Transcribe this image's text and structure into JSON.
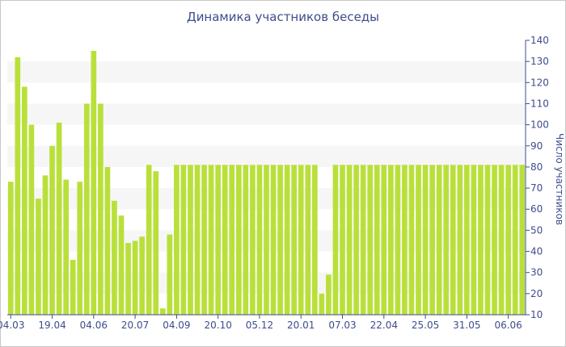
{
  "chart_data": {
    "type": "bar",
    "title": "Динамика участников беседы",
    "ylabel": "Число участников",
    "ylim": [
      10,
      140
    ],
    "yticks": [
      10,
      20,
      30,
      40,
      50,
      60,
      70,
      80,
      90,
      100,
      110,
      120,
      130,
      140
    ],
    "x_tick_labels": [
      "04.03",
      "19.04",
      "04.06",
      "20.07",
      "04.09",
      "20.10",
      "05.12",
      "20.01",
      "07.03",
      "22.04",
      "25.05",
      "31.05",
      "06.06"
    ],
    "x_tick_positions": [
      0,
      6,
      12,
      18,
      24,
      30,
      36,
      42,
      48,
      54,
      60,
      66,
      72
    ],
    "values": [
      73,
      132,
      118,
      100,
      65,
      76,
      90,
      101,
      74,
      36,
      73,
      110,
      135,
      110,
      80,
      64,
      57,
      44,
      45,
      47,
      81,
      78,
      13,
      48,
      81,
      81,
      81,
      81,
      81,
      81,
      81,
      81,
      81,
      81,
      81,
      81,
      81,
      81,
      81,
      81,
      81,
      81,
      81,
      81,
      81,
      20,
      29,
      81,
      81,
      81,
      81,
      81,
      81,
      81,
      81,
      81,
      81,
      81,
      81,
      81,
      81,
      81,
      81,
      81,
      81,
      81,
      81,
      81,
      81,
      81,
      81,
      81,
      81,
      81,
      81
    ],
    "bar_color": "#b9e03a",
    "band_color": "#f6f6f6",
    "axis_color": "#3e4c8c",
    "grid": "alternating horizontal bands"
  }
}
